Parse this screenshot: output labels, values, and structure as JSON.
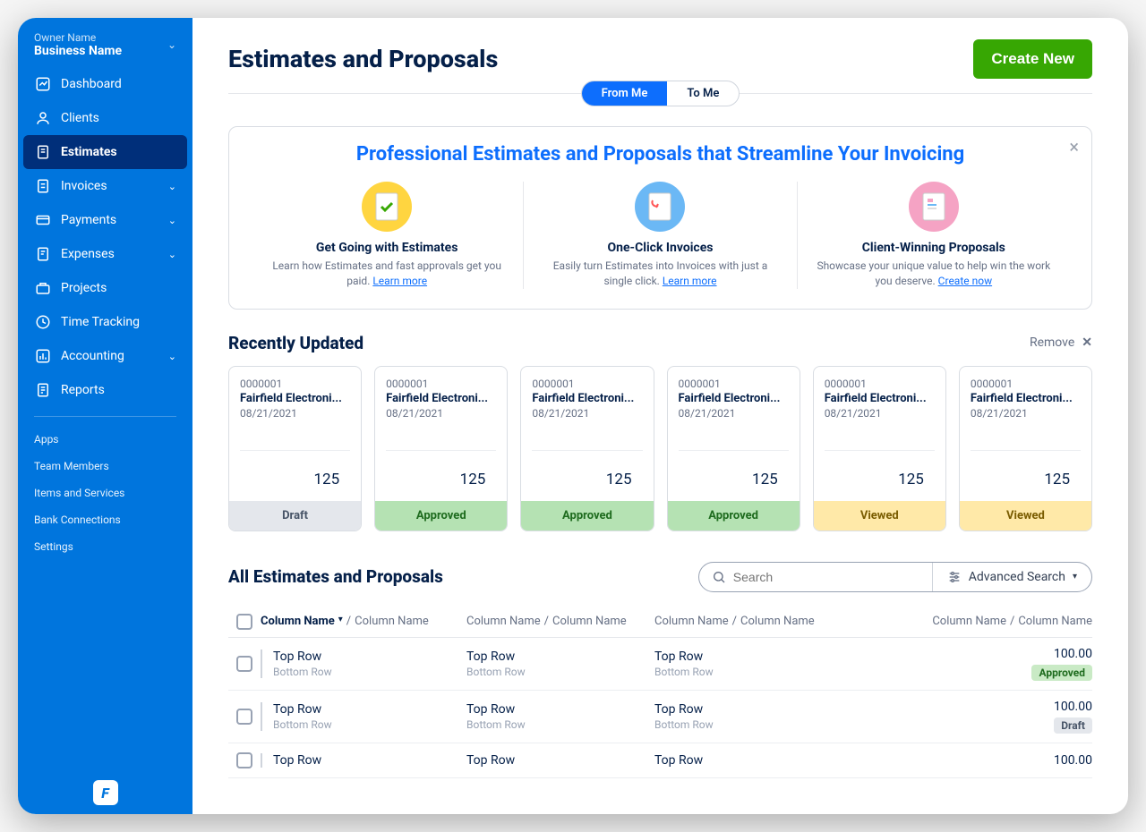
{
  "colors": {
    "sidebar_bg": "#0075dd",
    "sidebar_active_bg": "#002f7a",
    "primary_blue": "#0d6efd",
    "create_btn": "#37a703",
    "text_dark": "#052049",
    "text_muted": "#667085",
    "border": "#d9dde3",
    "status_draft_bg": "#e4e7ec",
    "status_approved_bg": "#b5e2b3",
    "status_viewed_bg": "#ffe9a8"
  },
  "sidebar": {
    "owner": "Owner Name",
    "business": "Business Name",
    "nav": [
      {
        "label": "Dashboard",
        "icon": "chart"
      },
      {
        "label": "Clients",
        "icon": "user"
      },
      {
        "label": "Estimates",
        "icon": "file",
        "active": true
      },
      {
        "label": "Invoices",
        "icon": "invoice",
        "expandable": true
      },
      {
        "label": "Payments",
        "icon": "card",
        "expandable": true
      },
      {
        "label": "Expenses",
        "icon": "receipt",
        "expandable": true
      },
      {
        "label": "Projects",
        "icon": "briefcase"
      },
      {
        "label": "Time Tracking",
        "icon": "clock"
      },
      {
        "label": "Accounting",
        "icon": "bars",
        "expandable": true
      },
      {
        "label": "Reports",
        "icon": "report"
      }
    ],
    "subnav": [
      "Apps",
      "Team Members",
      "Items and Services",
      "Bank Connections",
      "Settings"
    ]
  },
  "page": {
    "title": "Estimates and Proposals",
    "create_btn": "Create New",
    "tabs": {
      "from_me": "From Me",
      "to_me": "To Me"
    }
  },
  "banner": {
    "title": "Professional Estimates and Proposals that Streamline Your Invoicing",
    "cols": [
      {
        "title": "Get Going with Estimates",
        "desc": "Learn how Estimates and fast approvals get you paid. ",
        "link": "Learn more",
        "icon_bg": "#ffd540"
      },
      {
        "title": "One-Click Invoices",
        "desc": "Easily turn Estimates into Invoices with just a single click. ",
        "link": "Learn more",
        "icon_bg": "#6bb8f5"
      },
      {
        "title": "Client-Winning Proposals",
        "desc": "Showcase your unique value to help win the work you deserve. ",
        "link": "Create now",
        "icon_bg": "#f5a3c4"
      }
    ]
  },
  "recent": {
    "title": "Recently Updated",
    "remove_label": "Remove",
    "cards": [
      {
        "id": "0000001",
        "client": "Fairfield Electroni...",
        "date": "08/21/2021",
        "amount": "125",
        "status": "Draft",
        "status_class": "draft"
      },
      {
        "id": "0000001",
        "client": "Fairfield Electroni...",
        "date": "08/21/2021",
        "amount": "125",
        "status": "Approved",
        "status_class": "approved"
      },
      {
        "id": "0000001",
        "client": "Fairfield Electroni...",
        "date": "08/21/2021",
        "amount": "125",
        "status": "Approved",
        "status_class": "approved"
      },
      {
        "id": "0000001",
        "client": "Fairfield Electroni...",
        "date": "08/21/2021",
        "amount": "125",
        "status": "Approved",
        "status_class": "approved"
      },
      {
        "id": "0000001",
        "client": "Fairfield Electroni...",
        "date": "08/21/2021",
        "amount": "125",
        "status": "Viewed",
        "status_class": "viewed"
      },
      {
        "id": "0000001",
        "client": "Fairfield Electroni...",
        "date": "08/21/2021",
        "amount": "125",
        "status": "Viewed",
        "status_class": "viewed"
      }
    ]
  },
  "table": {
    "title": "All Estimates and Proposals",
    "search_placeholder": "Search",
    "advanced_label": "Advanced Search",
    "col_primary": "Column Name",
    "col_secondary": "Column Name",
    "rows": [
      {
        "c1t": "Top Row",
        "c1b": "Bottom Row",
        "c2t": "Top Row",
        "c2b": "Bottom Row",
        "c3t": "Top Row",
        "c3b": "Bottom Row",
        "amount": "100.00",
        "badge": "Approved",
        "badge_class": "approved"
      },
      {
        "c1t": "Top Row",
        "c1b": "Bottom Row",
        "c2t": "Top Row",
        "c2b": "Bottom Row",
        "c3t": "Top Row",
        "c3b": "Bottom Row",
        "amount": "100.00",
        "badge": "Draft",
        "badge_class": "draft"
      },
      {
        "c1t": "Top Row",
        "c1b": "",
        "c2t": "Top Row",
        "c2b": "",
        "c3t": "Top Row",
        "c3b": "",
        "amount": "100.00",
        "badge": "",
        "badge_class": ""
      }
    ]
  }
}
